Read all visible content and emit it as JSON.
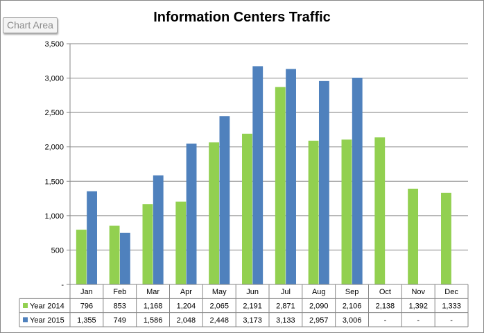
{
  "tooltip": "Chart Area",
  "colors": {
    "year_2014": "#92d050",
    "year_2015": "#4f81bd",
    "grid": "#868686"
  },
  "chart_data": {
    "type": "bar",
    "title": "Information Centers Traffic",
    "categories": [
      "Jan",
      "Feb",
      "Mar",
      "Apr",
      "May",
      "Jun",
      "Jul",
      "Aug",
      "Sep",
      "Oct",
      "Nov",
      "Dec"
    ],
    "series": [
      {
        "name": "Year 2014",
        "values": [
          796,
          853,
          1168,
          1204,
          2065,
          2191,
          2871,
          2090,
          2106,
          2138,
          1392,
          1333
        ],
        "labels": [
          "796",
          "853",
          "1,168",
          "1,204",
          "2,065",
          "2,191",
          "2,871",
          "2,090",
          "2,106",
          "2,138",
          "1,392",
          "1,333"
        ]
      },
      {
        "name": "Year 2015",
        "values": [
          1355,
          749,
          1586,
          2048,
          2448,
          3173,
          3133,
          2957,
          3006,
          null,
          null,
          null
        ],
        "labels": [
          "1,355",
          "749",
          "1,586",
          "2,048",
          "2,448",
          "3,173",
          "3,133",
          "2,957",
          "3,006",
          "-",
          "-",
          "-"
        ]
      }
    ],
    "ylim": [
      0,
      3500
    ],
    "yticks": [
      0,
      500,
      1000,
      1500,
      2000,
      2500,
      3000,
      3500
    ],
    "ytick_labels": [
      "-",
      "500",
      "1,000",
      "1,500",
      "2,000",
      "2,500",
      "3,000",
      "3,500"
    ],
    "grid": true,
    "legend": "data-table"
  }
}
